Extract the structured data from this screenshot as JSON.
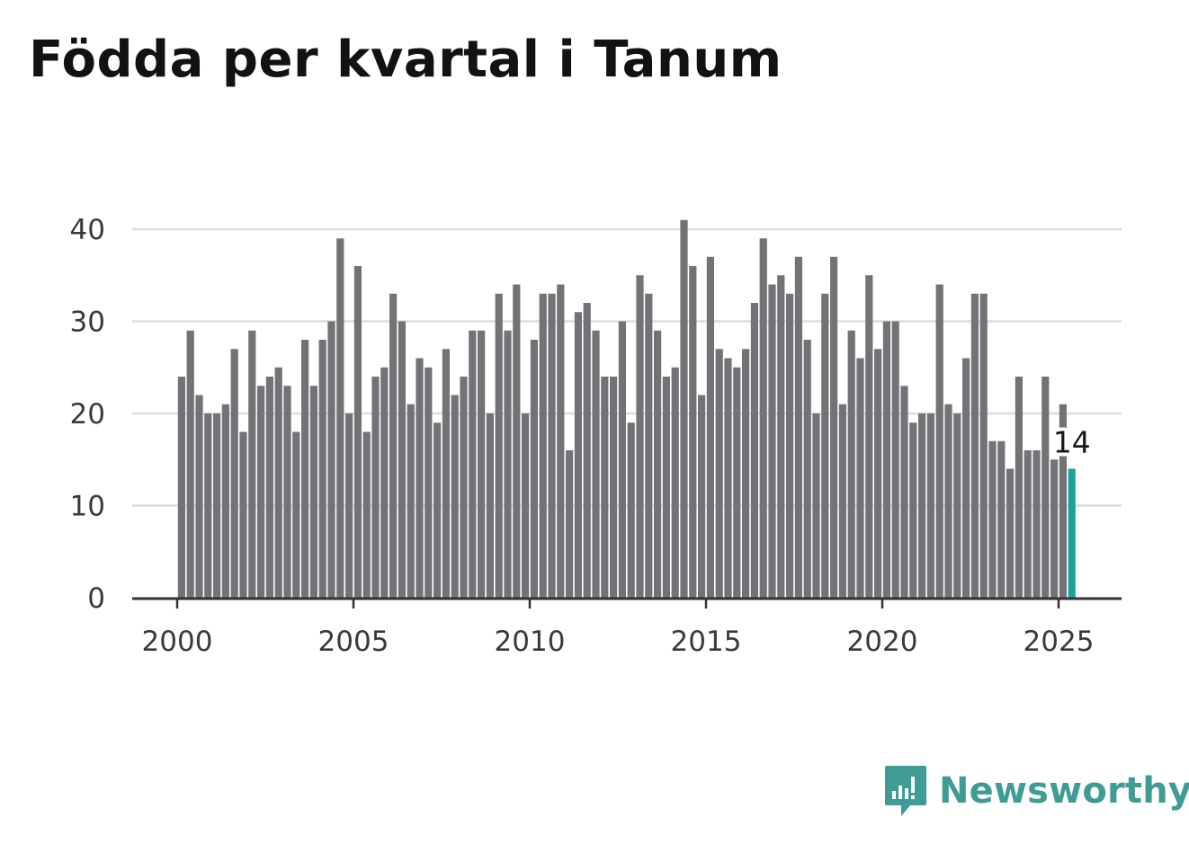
{
  "title": "Födda per kvartal i Tanum",
  "brand": {
    "name": "Newsworthy",
    "color": "#3f9c95",
    "icon": "newsworthy-logo-icon"
  },
  "chart_data": {
    "type": "bar",
    "title": "Födda per kvartal i Tanum",
    "xlabel": "",
    "ylabel": "",
    "ylim": [
      0,
      40
    ],
    "yticks": [
      0,
      10,
      20,
      30,
      40
    ],
    "xticks": [
      2000,
      2005,
      2010,
      2015,
      2020,
      2025
    ],
    "grid": true,
    "colors": {
      "bar": "#737377",
      "highlight": "#1aa396",
      "grid": "#dddddd",
      "axis": "#333333"
    },
    "start_year": 2000,
    "periods_per_year": 4,
    "highlight_last": true,
    "last_value_label": "14",
    "values": [
      24,
      29,
      22,
      20,
      20,
      21,
      27,
      18,
      29,
      23,
      24,
      25,
      23,
      18,
      28,
      23,
      28,
      30,
      39,
      20,
      36,
      18,
      24,
      25,
      33,
      30,
      21,
      26,
      25,
      19,
      27,
      22,
      24,
      29,
      29,
      20,
      33,
      29,
      34,
      20,
      28,
      33,
      33,
      34,
      16,
      31,
      32,
      29,
      24,
      24,
      30,
      19,
      35,
      33,
      29,
      24,
      25,
      41,
      36,
      22,
      37,
      27,
      26,
      25,
      27,
      32,
      39,
      34,
      35,
      33,
      37,
      28,
      20,
      33,
      37,
      21,
      29,
      26,
      35,
      27,
      30,
      30,
      23,
      19,
      20,
      20,
      34,
      21,
      20,
      26,
      33,
      33,
      17,
      17,
      14,
      24,
      16,
      16,
      24,
      15,
      21,
      14
    ]
  }
}
